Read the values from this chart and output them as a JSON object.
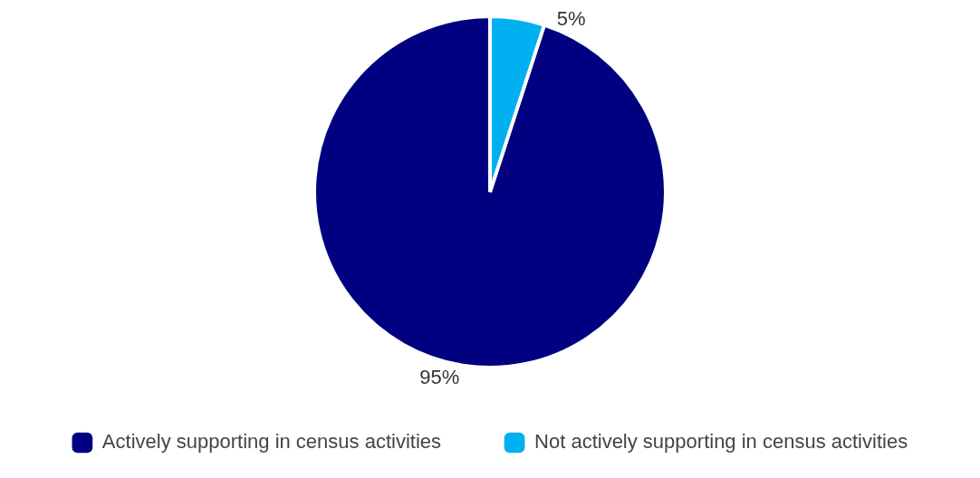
{
  "chart_data": {
    "type": "pie",
    "categories": [
      "Actively supporting in census activities",
      "Not actively supporting in census activities"
    ],
    "values": [
      95,
      5
    ],
    "colors": [
      "#000080",
      "#00b0f0"
    ],
    "legend": "bottom",
    "value_labels": [
      "95%",
      "5%"
    ]
  }
}
